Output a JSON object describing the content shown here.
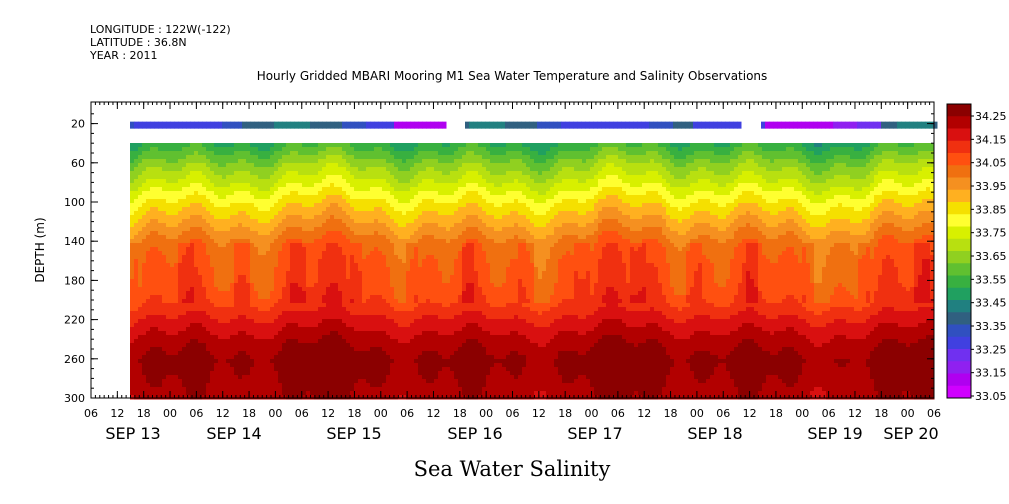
{
  "header": {
    "longitude": "LONGITUDE : 122W(-122)",
    "latitude": "LATITUDE : 36.8N",
    "year": "YEAR : 2011"
  },
  "chart_data": {
    "type": "heatmap",
    "title": "Hourly Gridded MBARI Mooring M1 Sea Water Temperature and Salinity Observations",
    "ylabel": "DEPTH (m)",
    "xlabel": "Sea Water Salinity",
    "ylim": [
      300,
      0
    ],
    "y_ticks": [
      "20",
      "60",
      "100",
      "140",
      "180",
      "220",
      "260",
      "300"
    ],
    "x_hour_ticks": [
      "06",
      "12",
      "18",
      "00",
      "06",
      "12",
      "18",
      "00",
      "06",
      "12",
      "18",
      "00",
      "06",
      "12",
      "18",
      "00",
      "06",
      "12",
      "18",
      "00",
      "06",
      "12",
      "18",
      "00",
      "06",
      "12",
      "18",
      "00",
      "06",
      "12",
      "18",
      "00",
      "06"
    ],
    "x_date_labels": [
      "SEP 13",
      "SEP 14",
      "SEP 15",
      "SEP 16",
      "SEP 17",
      "SEP 18",
      "SEP 19",
      "SEP 20"
    ],
    "colorbar_labels": [
      "34.25",
      "34.15",
      "34.05",
      "33.95",
      "33.85",
      "33.75",
      "33.65",
      "33.55",
      "33.45",
      "33.35",
      "33.25",
      "33.15",
      "33.05"
    ],
    "colorbar_colors": [
      "#8b0000",
      "#b20000",
      "#d91010",
      "#f03010",
      "#ff5010",
      "#f07010",
      "#f59020",
      "#ffb020",
      "#f5e000",
      "#ffff30",
      "#d8f000",
      "#b8e010",
      "#90d020",
      "#60c030",
      "#38b040",
      "#20a060",
      "#208080",
      "#306080",
      "#3050c0",
      "#4040e0",
      "#7030f0",
      "#9020f0",
      "#b000f0",
      "#d000ff"
    ],
    "depth_levels": [
      10,
      40,
      60,
      80,
      100,
      120,
      140,
      160,
      180,
      200,
      220,
      240,
      260,
      280,
      300
    ],
    "profile_salinity": [
      33.33,
      33.52,
      33.63,
      33.72,
      33.82,
      33.9,
      33.98,
      34.01,
      34.02,
      34.05,
      34.12,
      34.18,
      34.22,
      34.2,
      34.18
    ]
  }
}
